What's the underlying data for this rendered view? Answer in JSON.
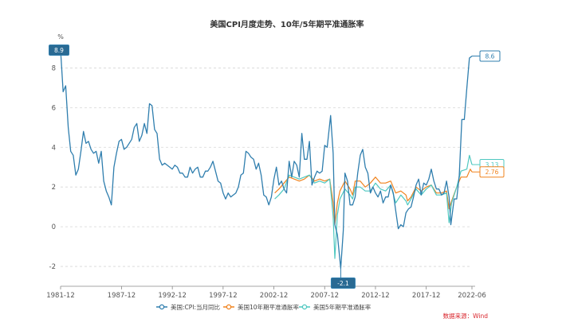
{
  "chart_data": {
    "type": "line",
    "title": "美国CPI月度走势、10年/5年期平准通胀率",
    "ylabel": "%",
    "xlabel": "",
    "x_range": [
      "1981-12",
      "2022-06"
    ],
    "ylim": [
      -3,
      9.5
    ],
    "yticks": [
      "-2",
      "0",
      "2",
      "4",
      "6",
      "8"
    ],
    "xticks": [
      "1981-12",
      "1987-12",
      "1992-12",
      "1997-12",
      "2002-12",
      "2007-12",
      "2012-12",
      "2017-12",
      "2022-06"
    ],
    "grid": "horizontal dashed",
    "legend_position": "bottom",
    "source": "数据来源：Wind",
    "series": [
      {
        "name": "美国:CPI:当月同比",
        "color": "#2f7eae",
        "points": [
          [
            "1981-12",
            8.9
          ],
          [
            "1982-03",
            6.8
          ],
          [
            "1982-06",
            7.1
          ],
          [
            "1982-09",
            5.0
          ],
          [
            "1982-12",
            3.8
          ],
          [
            "1983-03",
            3.6
          ],
          [
            "1983-06",
            2.6
          ],
          [
            "1983-09",
            2.9
          ],
          [
            "1983-12",
            3.8
          ],
          [
            "1984-03",
            4.8
          ],
          [
            "1984-06",
            4.2
          ],
          [
            "1984-09",
            4.3
          ],
          [
            "1984-12",
            3.9
          ],
          [
            "1985-03",
            3.7
          ],
          [
            "1985-06",
            3.8
          ],
          [
            "1985-09",
            3.2
          ],
          [
            "1985-12",
            3.8
          ],
          [
            "1986-03",
            2.3
          ],
          [
            "1986-06",
            1.8
          ],
          [
            "1986-09",
            1.5
          ],
          [
            "1986-12",
            1.1
          ],
          [
            "1987-03",
            3.0
          ],
          [
            "1987-06",
            3.7
          ],
          [
            "1987-09",
            4.3
          ],
          [
            "1987-12",
            4.4
          ],
          [
            "1988-03",
            3.9
          ],
          [
            "1988-06",
            4.0
          ],
          [
            "1988-09",
            4.2
          ],
          [
            "1988-12",
            4.4
          ],
          [
            "1989-03",
            5.0
          ],
          [
            "1989-06",
            5.2
          ],
          [
            "1989-09",
            4.3
          ],
          [
            "1989-12",
            4.6
          ],
          [
            "1990-03",
            5.2
          ],
          [
            "1990-06",
            4.7
          ],
          [
            "1990-09",
            6.2
          ],
          [
            "1990-12",
            6.1
          ],
          [
            "1991-03",
            4.9
          ],
          [
            "1991-06",
            4.7
          ],
          [
            "1991-09",
            3.4
          ],
          [
            "1991-12",
            3.1
          ],
          [
            "1992-03",
            3.2
          ],
          [
            "1992-06",
            3.1
          ],
          [
            "1992-09",
            3.0
          ],
          [
            "1992-12",
            2.9
          ],
          [
            "1993-03",
            3.1
          ],
          [
            "1993-06",
            3.0
          ],
          [
            "1993-09",
            2.7
          ],
          [
            "1993-12",
            2.7
          ],
          [
            "1994-03",
            2.5
          ],
          [
            "1994-06",
            2.5
          ],
          [
            "1994-09",
            3.0
          ],
          [
            "1994-12",
            2.7
          ],
          [
            "1995-03",
            2.9
          ],
          [
            "1995-06",
            3.0
          ],
          [
            "1995-09",
            2.5
          ],
          [
            "1995-12",
            2.5
          ],
          [
            "1996-03",
            2.8
          ],
          [
            "1996-06",
            2.8
          ],
          [
            "1996-09",
            3.0
          ],
          [
            "1996-12",
            3.3
          ],
          [
            "1997-03",
            2.8
          ],
          [
            "1997-06",
            2.3
          ],
          [
            "1997-09",
            2.2
          ],
          [
            "1997-12",
            1.7
          ],
          [
            "1998-03",
            1.4
          ],
          [
            "1998-06",
            1.7
          ],
          [
            "1998-09",
            1.5
          ],
          [
            "1998-12",
            1.6
          ],
          [
            "1999-03",
            1.7
          ],
          [
            "1999-06",
            2.0
          ],
          [
            "1999-09",
            2.6
          ],
          [
            "1999-12",
            2.7
          ],
          [
            "2000-03",
            3.8
          ],
          [
            "2000-06",
            3.7
          ],
          [
            "2000-09",
            3.5
          ],
          [
            "2000-12",
            3.4
          ],
          [
            "2001-03",
            2.9
          ],
          [
            "2001-06",
            3.2
          ],
          [
            "2001-09",
            2.6
          ],
          [
            "2001-12",
            1.6
          ],
          [
            "2002-03",
            1.5
          ],
          [
            "2002-06",
            1.1
          ],
          [
            "2002-09",
            1.5
          ],
          [
            "2002-12",
            2.4
          ],
          [
            "2003-03",
            3.0
          ],
          [
            "2003-06",
            2.1
          ],
          [
            "2003-09",
            2.3
          ],
          [
            "2003-12",
            1.9
          ],
          [
            "2004-03",
            1.7
          ],
          [
            "2004-06",
            3.3
          ],
          [
            "2004-09",
            2.5
          ],
          [
            "2004-12",
            3.3
          ],
          [
            "2005-03",
            3.1
          ],
          [
            "2005-06",
            2.5
          ],
          [
            "2005-09",
            4.7
          ],
          [
            "2005-12",
            3.4
          ],
          [
            "2006-03",
            3.4
          ],
          [
            "2006-06",
            4.3
          ],
          [
            "2006-09",
            2.1
          ],
          [
            "2006-12",
            2.5
          ],
          [
            "2007-03",
            2.8
          ],
          [
            "2007-06",
            2.7
          ],
          [
            "2007-09",
            2.8
          ],
          [
            "2007-12",
            4.1
          ],
          [
            "2008-03",
            4.0
          ],
          [
            "2008-07",
            5.6
          ],
          [
            "2008-10",
            3.7
          ],
          [
            "2008-12",
            0.1
          ],
          [
            "2009-03",
            -0.4
          ],
          [
            "2009-07",
            -2.1
          ],
          [
            "2009-10",
            -0.2
          ],
          [
            "2009-12",
            2.7
          ],
          [
            "2010-03",
            2.3
          ],
          [
            "2010-06",
            1.1
          ],
          [
            "2010-09",
            1.1
          ],
          [
            "2010-12",
            1.5
          ],
          [
            "2011-03",
            2.7
          ],
          [
            "2011-06",
            3.6
          ],
          [
            "2011-09",
            3.9
          ],
          [
            "2011-12",
            3.0
          ],
          [
            "2012-03",
            2.7
          ],
          [
            "2012-06",
            1.7
          ],
          [
            "2012-09",
            2.0
          ],
          [
            "2012-12",
            1.7
          ],
          [
            "2013-03",
            1.5
          ],
          [
            "2013-06",
            1.8
          ],
          [
            "2013-09",
            1.2
          ],
          [
            "2013-12",
            1.5
          ],
          [
            "2014-03",
            1.5
          ],
          [
            "2014-06",
            2.1
          ],
          [
            "2014-09",
            1.7
          ],
          [
            "2014-12",
            0.8
          ],
          [
            "2015-03",
            -0.1
          ],
          [
            "2015-06",
            0.1
          ],
          [
            "2015-09",
            0.0
          ],
          [
            "2015-12",
            0.7
          ],
          [
            "2016-03",
            0.9
          ],
          [
            "2016-06",
            1.0
          ],
          [
            "2016-09",
            1.5
          ],
          [
            "2016-12",
            2.1
          ],
          [
            "2017-03",
            2.4
          ],
          [
            "2017-06",
            1.6
          ],
          [
            "2017-09",
            2.2
          ],
          [
            "2017-12",
            2.1
          ],
          [
            "2018-03",
            2.4
          ],
          [
            "2018-06",
            2.9
          ],
          [
            "2018-09",
            2.3
          ],
          [
            "2018-12",
            1.9
          ],
          [
            "2019-03",
            1.9
          ],
          [
            "2019-06",
            1.6
          ],
          [
            "2019-09",
            1.7
          ],
          [
            "2019-12",
            2.3
          ],
          [
            "2020-03",
            1.5
          ],
          [
            "2020-05",
            0.1
          ],
          [
            "2020-09",
            1.4
          ],
          [
            "2020-12",
            1.4
          ],
          [
            "2021-03",
            2.6
          ],
          [
            "2021-06",
            5.4
          ],
          [
            "2021-09",
            5.4
          ],
          [
            "2021-12",
            7.0
          ],
          [
            "2022-03",
            8.5
          ],
          [
            "2022-06",
            8.6
          ]
        ]
      },
      {
        "name": "美国10年期平准通胀率",
        "color": "#f0831e",
        "points": [
          [
            "2003-01",
            1.7
          ],
          [
            "2003-06",
            1.9
          ],
          [
            "2003-12",
            2.2
          ],
          [
            "2004-06",
            2.5
          ],
          [
            "2004-12",
            2.4
          ],
          [
            "2005-06",
            2.3
          ],
          [
            "2005-12",
            2.4
          ],
          [
            "2006-06",
            2.6
          ],
          [
            "2006-12",
            2.3
          ],
          [
            "2007-06",
            2.4
          ],
          [
            "2007-12",
            2.3
          ],
          [
            "2008-06",
            2.4
          ],
          [
            "2008-10",
            1.2
          ],
          [
            "2008-12",
            0.1
          ],
          [
            "2009-03",
            1.2
          ],
          [
            "2009-06",
            1.8
          ],
          [
            "2009-12",
            2.3
          ],
          [
            "2010-06",
            1.9
          ],
          [
            "2010-09",
            1.6
          ],
          [
            "2010-12",
            2.3
          ],
          [
            "2011-06",
            2.3
          ],
          [
            "2011-12",
            2.0
          ],
          [
            "2012-06",
            2.2
          ],
          [
            "2012-12",
            2.5
          ],
          [
            "2013-06",
            2.2
          ],
          [
            "2013-12",
            2.2
          ],
          [
            "2014-06",
            2.3
          ],
          [
            "2014-12",
            1.7
          ],
          [
            "2015-06",
            1.8
          ],
          [
            "2015-12",
            1.6
          ],
          [
            "2016-02",
            1.3
          ],
          [
            "2016-06",
            1.5
          ],
          [
            "2016-12",
            2.0
          ],
          [
            "2017-06",
            1.8
          ],
          [
            "2017-12",
            2.0
          ],
          [
            "2018-06",
            2.1
          ],
          [
            "2018-12",
            1.7
          ],
          [
            "2019-06",
            1.7
          ],
          [
            "2019-12",
            1.8
          ],
          [
            "2020-03",
            0.9
          ],
          [
            "2020-06",
            1.3
          ],
          [
            "2020-12",
            2.0
          ],
          [
            "2021-05",
            2.5
          ],
          [
            "2021-12",
            2.5
          ],
          [
            "2022-04",
            2.9
          ],
          [
            "2022-06",
            2.76
          ]
        ]
      },
      {
        "name": "美国5年期平准通胀率",
        "color": "#4fc8c0",
        "points": [
          [
            "2003-01",
            1.4
          ],
          [
            "2003-06",
            1.6
          ],
          [
            "2003-12",
            1.9
          ],
          [
            "2004-06",
            2.6
          ],
          [
            "2004-12",
            2.5
          ],
          [
            "2005-06",
            2.4
          ],
          [
            "2005-12",
            2.5
          ],
          [
            "2006-06",
            2.6
          ],
          [
            "2006-12",
            2.2
          ],
          [
            "2007-06",
            2.3
          ],
          [
            "2007-12",
            2.2
          ],
          [
            "2008-06",
            2.4
          ],
          [
            "2008-10",
            0.5
          ],
          [
            "2008-12",
            -1.6
          ],
          [
            "2009-03",
            0.6
          ],
          [
            "2009-06",
            1.4
          ],
          [
            "2009-12",
            1.9
          ],
          [
            "2010-06",
            1.6
          ],
          [
            "2010-09",
            1.4
          ],
          [
            "2010-12",
            2.0
          ],
          [
            "2011-06",
            2.0
          ],
          [
            "2011-12",
            1.8
          ],
          [
            "2012-06",
            1.8
          ],
          [
            "2012-12",
            2.2
          ],
          [
            "2013-06",
            1.9
          ],
          [
            "2013-12",
            1.8
          ],
          [
            "2014-06",
            2.1
          ],
          [
            "2014-12",
            1.2
          ],
          [
            "2015-06",
            1.6
          ],
          [
            "2015-12",
            1.3
          ],
          [
            "2016-02",
            1.1
          ],
          [
            "2016-06",
            1.4
          ],
          [
            "2016-12",
            1.9
          ],
          [
            "2017-06",
            1.6
          ],
          [
            "2017-12",
            1.9
          ],
          [
            "2018-06",
            2.1
          ],
          [
            "2018-12",
            1.6
          ],
          [
            "2019-06",
            1.6
          ],
          [
            "2019-12",
            1.7
          ],
          [
            "2020-03",
            0.2
          ],
          [
            "2020-06",
            1.2
          ],
          [
            "2020-12",
            2.0
          ],
          [
            "2021-05",
            2.8
          ],
          [
            "2021-12",
            2.9
          ],
          [
            "2022-03",
            3.6
          ],
          [
            "2022-06",
            3.13
          ]
        ]
      }
    ],
    "annotations": [
      {
        "label": "8.9",
        "x": "1981-12",
        "y": 8.9,
        "series": 0,
        "side": "left"
      },
      {
        "label": "-2.1",
        "x": "2009-07",
        "y": -2.1,
        "series": 0,
        "side": "below"
      },
      {
        "label": "8.6",
        "x": "2022-06",
        "y": 8.6,
        "series": 0,
        "side": "right"
      },
      {
        "label": "3.13",
        "x": "2022-06",
        "y": 3.13,
        "series": 2,
        "side": "right"
      },
      {
        "label": "2.76",
        "x": "2022-06",
        "y": 2.76,
        "series": 1,
        "side": "right"
      }
    ]
  }
}
